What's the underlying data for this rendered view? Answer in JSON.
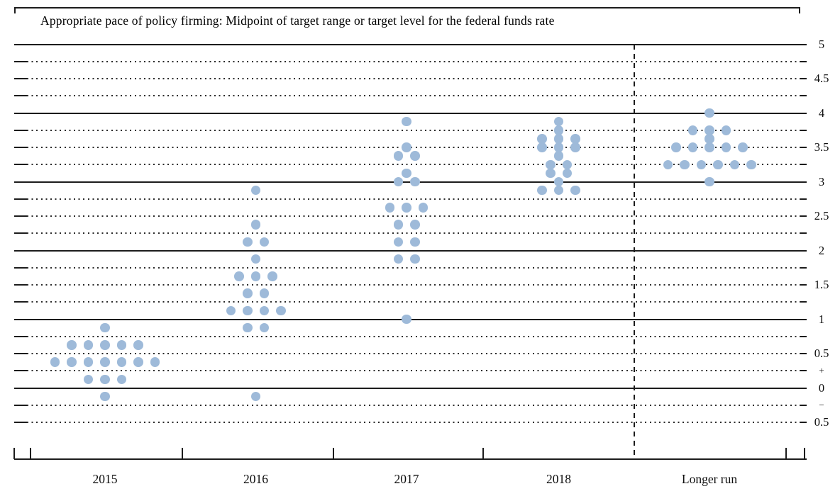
{
  "chart_data": {
    "type": "scatter",
    "subtype": "fomc-dot-plot",
    "title": "Appropriate pace of policy firming: Midpoint of target range or target level for the federal funds rate",
    "x_categories": [
      "2015",
      "2016",
      "2017",
      "2018",
      "Longer run"
    ],
    "ylim": [
      -0.5,
      5
    ],
    "y_gridline_step": 0.25,
    "dot_color": "#9EBAD9",
    "yticks": [
      {
        "value": 5,
        "label": "5"
      },
      {
        "value": 4.5,
        "label": "4.5"
      },
      {
        "value": 4,
        "label": "4"
      },
      {
        "value": 3.5,
        "label": "3.5"
      },
      {
        "value": 3,
        "label": "3"
      },
      {
        "value": 2.5,
        "label": "2.5"
      },
      {
        "value": 2,
        "label": "2"
      },
      {
        "value": 1.5,
        "label": "1.5"
      },
      {
        "value": 1,
        "label": "1"
      },
      {
        "value": 0.5,
        "label": "0.5"
      },
      {
        "value": 0.25,
        "label": "+"
      },
      {
        "value": 0,
        "label": "0"
      },
      {
        "value": -0.25,
        "label": "−"
      },
      {
        "value": -0.5,
        "label": "0.5"
      }
    ],
    "projections": [
      {
        "period": "2015",
        "dots": [
          {
            "rate": 0.875,
            "count": 1
          },
          {
            "rate": 0.625,
            "count": 5
          },
          {
            "rate": 0.375,
            "count": 7
          },
          {
            "rate": 0.125,
            "count": 3
          },
          {
            "rate": -0.125,
            "count": 1
          }
        ]
      },
      {
        "period": "2016",
        "dots": [
          {
            "rate": 2.875,
            "count": 1
          },
          {
            "rate": 2.375,
            "count": 1
          },
          {
            "rate": 2.125,
            "count": 2
          },
          {
            "rate": 1.875,
            "count": 1
          },
          {
            "rate": 1.625,
            "count": 3
          },
          {
            "rate": 1.375,
            "count": 2
          },
          {
            "rate": 1.125,
            "count": 4
          },
          {
            "rate": 0.875,
            "count": 2
          },
          {
            "rate": -0.125,
            "count": 1
          }
        ]
      },
      {
        "period": "2017",
        "dots": [
          {
            "rate": 3.875,
            "count": 1
          },
          {
            "rate": 3.5,
            "count": 1
          },
          {
            "rate": 3.375,
            "count": 2
          },
          {
            "rate": 3.125,
            "count": 1
          },
          {
            "rate": 3.0,
            "count": 2
          },
          {
            "rate": 2.625,
            "count": 3
          },
          {
            "rate": 2.375,
            "count": 2
          },
          {
            "rate": 2.125,
            "count": 2
          },
          {
            "rate": 1.875,
            "count": 2
          },
          {
            "rate": 1.0,
            "count": 1
          }
        ]
      },
      {
        "period": "2018",
        "dots": [
          {
            "rate": 3.875,
            "count": 1
          },
          {
            "rate": 3.75,
            "count": 1
          },
          {
            "rate": 3.625,
            "count": 3
          },
          {
            "rate": 3.5,
            "count": 3
          },
          {
            "rate": 3.375,
            "count": 1
          },
          {
            "rate": 3.25,
            "count": 2
          },
          {
            "rate": 3.125,
            "count": 2
          },
          {
            "rate": 3.0,
            "count": 1
          },
          {
            "rate": 2.875,
            "count": 3
          }
        ]
      },
      {
        "period": "Longer run",
        "dots": [
          {
            "rate": 4.0,
            "count": 1
          },
          {
            "rate": 3.75,
            "count": 3
          },
          {
            "rate": 3.625,
            "count": 1
          },
          {
            "rate": 3.5,
            "count": 5
          },
          {
            "rate": 3.25,
            "count": 6
          },
          {
            "rate": 3.0,
            "count": 1
          }
        ]
      }
    ]
  }
}
